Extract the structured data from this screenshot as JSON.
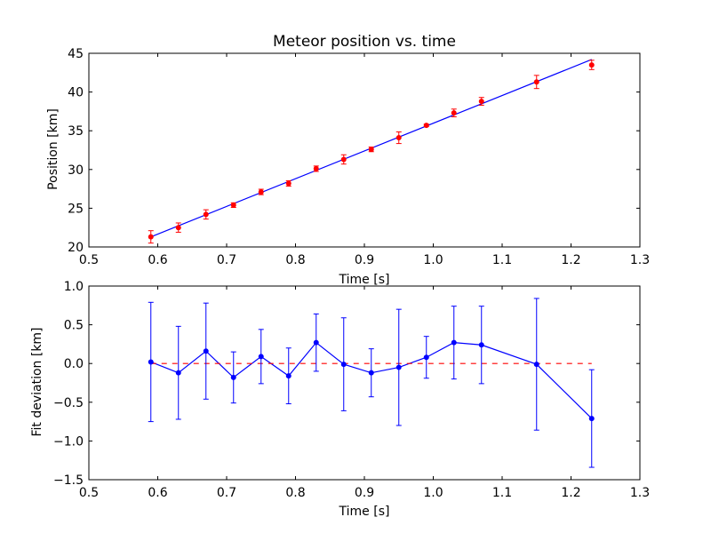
{
  "chart_data": [
    {
      "type": "scatter",
      "title": "Meteor position vs. time",
      "xlabel": "Time [s]",
      "ylabel": "Position [km]",
      "xlim": [
        0.5,
        1.3
      ],
      "ylim": [
        20,
        45
      ],
      "xticks": [
        "0.5",
        "0.6",
        "0.7",
        "0.8",
        "0.9",
        "1.0",
        "1.1",
        "1.2",
        "1.3"
      ],
      "yticks": [
        "20",
        "25",
        "30",
        "35",
        "40",
        "45"
      ],
      "grid": false,
      "series": [
        {
          "kind": "errorbar-points",
          "color": "#ff0000",
          "errorbar_color": "#ff0000",
          "points": [
            {
              "x": 0.59,
              "y": 21.3,
              "err": 0.8
            },
            {
              "x": 0.63,
              "y": 22.5,
              "err": 0.6
            },
            {
              "x": 0.67,
              "y": 24.2,
              "err": 0.6
            },
            {
              "x": 0.71,
              "y": 25.4,
              "err": 0.3
            },
            {
              "x": 0.75,
              "y": 27.1,
              "err": 0.35
            },
            {
              "x": 0.79,
              "y": 28.2,
              "err": 0.35
            },
            {
              "x": 0.83,
              "y": 30.1,
              "err": 0.35
            },
            {
              "x": 0.87,
              "y": 31.3,
              "err": 0.6
            },
            {
              "x": 0.91,
              "y": 32.6,
              "err": 0.3
            },
            {
              "x": 0.95,
              "y": 34.1,
              "err": 0.75
            },
            {
              "x": 0.99,
              "y": 35.7,
              "err": 0.15
            },
            {
              "x": 1.03,
              "y": 37.3,
              "err": 0.5
            },
            {
              "x": 1.07,
              "y": 38.8,
              "err": 0.5
            },
            {
              "x": 1.15,
              "y": 41.3,
              "err": 0.85
            },
            {
              "x": 1.23,
              "y": 43.5,
              "err": 0.6
            }
          ]
        },
        {
          "kind": "fit-line",
          "color": "#0000ff",
          "x": [
            0.59,
            1.23
          ],
          "y": [
            21.3,
            44.2
          ]
        }
      ]
    },
    {
      "type": "line",
      "xlabel": "Time [s]",
      "ylabel": "Fit deviation [km]",
      "xlim": [
        0.5,
        1.3
      ],
      "ylim": [
        -1.5,
        1.0
      ],
      "xticks": [
        "0.5",
        "0.6",
        "0.7",
        "0.8",
        "0.9",
        "1.0",
        "1.1",
        "1.2",
        "1.3"
      ],
      "yticks": [
        "−1.5",
        "−1.0",
        "−0.5",
        "0.0",
        "0.5",
        "1.0"
      ],
      "grid": false,
      "series": [
        {
          "kind": "errorbar-line",
          "color": "#0000ff",
          "points": [
            {
              "x": 0.59,
              "y": 0.02,
              "err": 0.77
            },
            {
              "x": 0.63,
              "y": -0.12,
              "err": 0.6
            },
            {
              "x": 0.67,
              "y": 0.16,
              "err": 0.62
            },
            {
              "x": 0.71,
              "y": -0.18,
              "err": 0.33
            },
            {
              "x": 0.75,
              "y": 0.09,
              "err": 0.35
            },
            {
              "x": 0.79,
              "y": -0.16,
              "err": 0.36
            },
            {
              "x": 0.83,
              "y": 0.27,
              "err": 0.37
            },
            {
              "x": 0.87,
              "y": -0.01,
              "err": 0.6
            },
            {
              "x": 0.91,
              "y": -0.12,
              "err": 0.31
            },
            {
              "x": 0.95,
              "y": -0.05,
              "err": 0.75
            },
            {
              "x": 0.99,
              "y": 0.08,
              "err": 0.27
            },
            {
              "x": 1.03,
              "y": 0.27,
              "err": 0.47
            },
            {
              "x": 1.07,
              "y": 0.24,
              "err": 0.5
            },
            {
              "x": 1.15,
              "y": -0.01,
              "err": 0.85
            },
            {
              "x": 1.23,
              "y": -0.71,
              "err": 0.63
            }
          ]
        },
        {
          "kind": "zero-line",
          "color": "#ff0000",
          "style": "dashed",
          "x": [
            0.59,
            1.23
          ],
          "y": [
            0,
            0
          ]
        }
      ]
    }
  ]
}
